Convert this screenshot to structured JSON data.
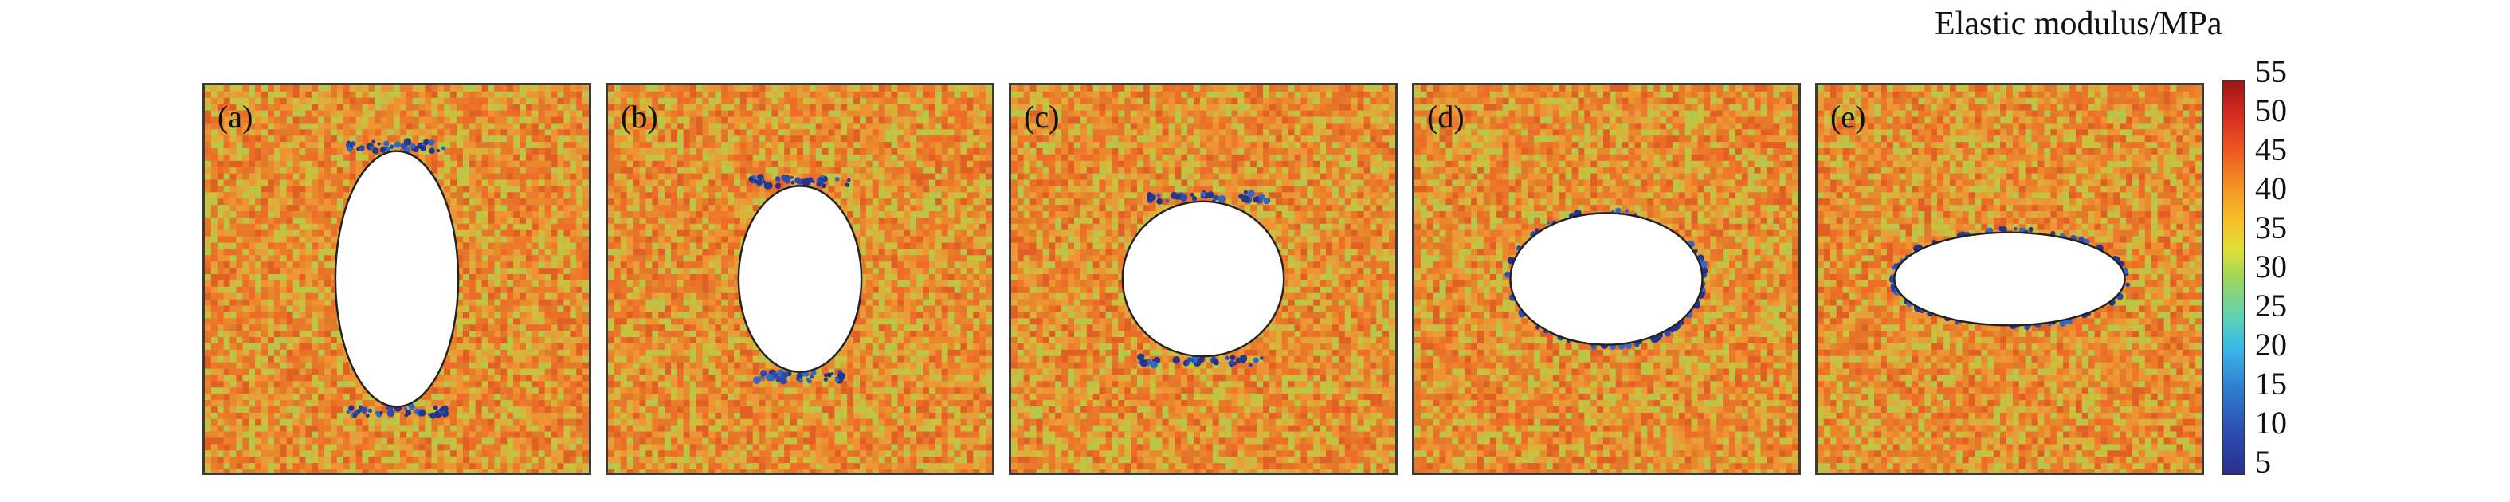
{
  "colorbar": {
    "title": "Elastic modulus/MPa",
    "ticks": [
      "55",
      "50",
      "45",
      "40",
      "35",
      "30",
      "25",
      "20",
      "15",
      "10",
      "5"
    ],
    "colors": [
      "#2a2e8f",
      "#2c4bb0",
      "#2f7fd0",
      "#3bb7e8",
      "#5fd3b3",
      "#9fd65a",
      "#dfe13a",
      "#f7c22c",
      "#f39a26",
      "#ee5a22",
      "#d42a20",
      "#9c1616"
    ]
  },
  "panels": [
    {
      "label": "(a)",
      "hole": "tall ellipse"
    },
    {
      "label": "(b)",
      "hole": "ellipse"
    },
    {
      "label": "(c)",
      "hole": "circle"
    },
    {
      "label": "(d)",
      "hole": "wide ellipse"
    },
    {
      "label": "(e)",
      "hole": "flat ellipse"
    }
  ]
}
